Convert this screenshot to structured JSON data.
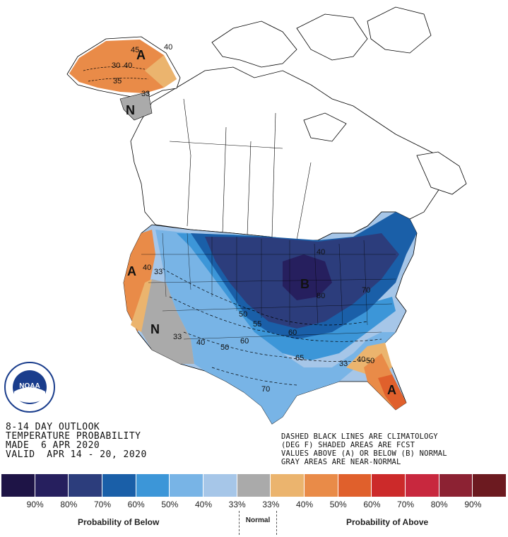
{
  "title": {
    "line1": "8-14 DAY OUTLOOK",
    "line2": "TEMPERATURE PROBABILITY",
    "line3": "MADE  6 APR 2020",
    "line4": "VALID  APR 14 - 20, 2020"
  },
  "note": {
    "line1": "DASHED BLACK LINES ARE CLIMATOLOGY",
    "line2": "(DEG F) SHADED AREAS ARE FCST",
    "line3": "VALUES ABOVE (A) OR BELOW (B) NORMAL",
    "line4": "GRAY AREAS ARE NEAR-NORMAL"
  },
  "logo": {
    "text": "NOAA"
  },
  "legend": {
    "colors": [
      "#1e1446",
      "#261f5e",
      "#2c3d7c",
      "#1a5fa8",
      "#3c96d8",
      "#78b4e6",
      "#a6c6e8",
      "#aaaaaa",
      "#ebb46e",
      "#e98b48",
      "#e0602c",
      "#cc2a2a",
      "#c8283e",
      "#8c2233",
      "#6c1a20"
    ],
    "ticks": [
      "90%",
      "80%",
      "70%",
      "60%",
      "50%",
      "40%",
      "33%",
      "33%",
      "40%",
      "50%",
      "60%",
      "70%",
      "80%",
      "90%"
    ],
    "below_caption": "Probability of Below",
    "normal_caption": "Normal",
    "above_caption": "Probability of Above"
  },
  "map_labels": {
    "ak_letter": "A",
    "ak_40": "40",
    "ak_45": "45",
    "ak_35": "35",
    "ak_40b": "40",
    "ak_30": "30",
    "ak_33": "33",
    "nw_letter": "N",
    "west_letter": "A",
    "west_40": "40",
    "west_33": "33",
    "sw_letter": "N",
    "sw_33": "33",
    "c_40": "40",
    "c_50": "50",
    "c_60": "60",
    "c_50b": "50",
    "c_55": "55",
    "c_60b": "60",
    "c_65": "65",
    "c_70": "70",
    "b_letter": "B",
    "b_80": "80",
    "b_70": "70",
    "ne_40": "40",
    "se_33": "33",
    "se_40": "40",
    "se_50": "50",
    "fl_letter": "A"
  }
}
